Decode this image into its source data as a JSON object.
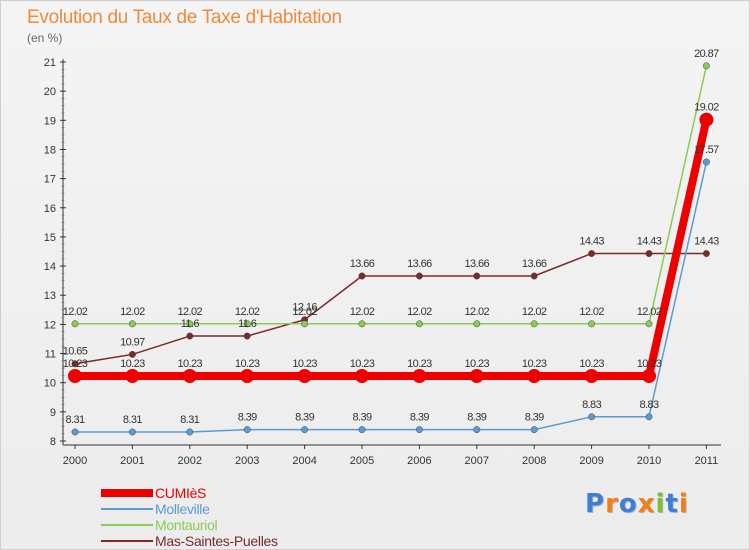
{
  "chart_data": {
    "type": "line",
    "title": "Evolution du Taux de Taxe d'Habitation",
    "unit_label": "(en %)",
    "x": [
      "2000",
      "2001",
      "2002",
      "2003",
      "2004",
      "2005",
      "2006",
      "2007",
      "2008",
      "2009",
      "2010",
      "2011"
    ],
    "ylim": [
      8,
      21
    ],
    "yticks": [
      8,
      9,
      10,
      11,
      12,
      13,
      14,
      15,
      16,
      17,
      18,
      19,
      20,
      21
    ],
    "grid": false,
    "legend_position": "bottom-left",
    "series": [
      {
        "name": "CUMIèS",
        "color": "#ee0000",
        "values": [
          10.23,
          10.23,
          10.23,
          10.23,
          10.23,
          10.23,
          10.23,
          10.23,
          10.23,
          10.23,
          10.23,
          19.02
        ],
        "labels": [
          "10.23",
          "10.23",
          "10.23",
          "10.23",
          "10.23",
          "10.23",
          "10.23",
          "10.23",
          "10.23",
          "10.23",
          "10.23",
          "19.02"
        ]
      },
      {
        "name": "Molleville",
        "color": "#5b9bd5",
        "values": [
          8.31,
          8.31,
          8.31,
          8.39,
          8.39,
          8.39,
          8.39,
          8.39,
          8.39,
          8.83,
          8.83,
          17.57
        ],
        "labels": [
          "8.31",
          "8.31",
          "8.31",
          "8.39",
          "8.39",
          "8.39",
          "8.39",
          "8.39",
          "8.39",
          "8.83",
          "8.83",
          "17.57"
        ]
      },
      {
        "name": "Montauriol",
        "color": "#88cc55",
        "values": [
          12.02,
          12.02,
          12.02,
          12.02,
          12.02,
          12.02,
          12.02,
          12.02,
          12.02,
          12.02,
          12.02,
          20.87
        ],
        "labels": [
          "12.02",
          "12.02",
          "12.02",
          "12.02",
          "12.02",
          "12.02",
          "12.02",
          "12.02",
          "12.02",
          "12.02",
          "12.02",
          "20.87"
        ]
      },
      {
        "name": "Mas-Saintes-Puelles",
        "color": "#7a2a2a",
        "values": [
          10.65,
          10.97,
          11.6,
          11.6,
          12.16,
          13.66,
          13.66,
          13.66,
          13.66,
          14.43,
          14.43,
          14.43
        ],
        "labels": [
          "10.65",
          "10.97",
          "11.6",
          "11.6",
          "12.16",
          "13.66",
          "13.66",
          "13.66",
          "13.66",
          "14.43",
          "14.43",
          "14.43"
        ]
      }
    ]
  },
  "logo": {
    "text": "Proxiti",
    "letter_colors": [
      "#3d7fd8",
      "#f07f1a",
      "#3d7fd8",
      "#f07f1a",
      "#7bbf3a",
      "#3d7fd8",
      "#f07f1a"
    ]
  }
}
